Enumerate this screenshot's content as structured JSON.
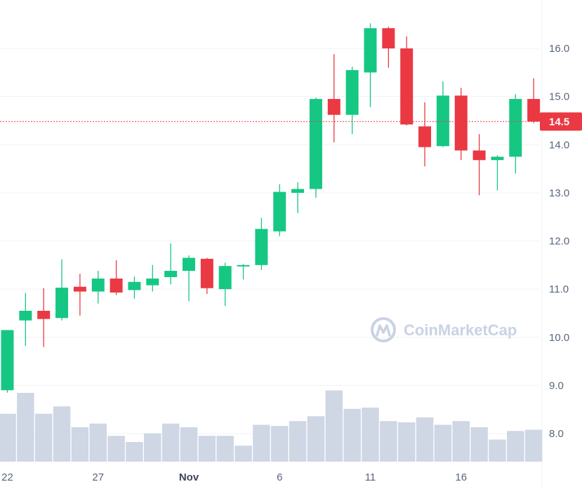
{
  "chart_data": {
    "type": "candlestick",
    "y_axis": {
      "ticks": [
        "16.0",
        "15.0",
        "14.0",
        "13.0",
        "12.0",
        "11.0",
        "10.0",
        "9.0",
        "8.0"
      ],
      "range": [
        7.4,
        16.95
      ],
      "position": "right"
    },
    "x_axis": {
      "ticks": [
        {
          "label": "22",
          "candle_index": 0,
          "bold": false
        },
        {
          "label": "27",
          "candle_index": 5,
          "bold": false
        },
        {
          "label": "Nov",
          "candle_index": 10,
          "bold": true
        },
        {
          "label": "6",
          "candle_index": 15,
          "bold": false
        },
        {
          "label": "11",
          "candle_index": 20,
          "bold": false
        },
        {
          "label": "16",
          "candle_index": 25,
          "bold": false
        }
      ]
    },
    "current_price": "14.5",
    "current_price_value": 14.48,
    "colors": {
      "up": "#16c784",
      "down": "#ea3943",
      "volume": "#cfd6e4",
      "grid": "#eff2f5",
      "price_line": "#ea3943",
      "axis_text": "#58667e"
    },
    "watermark": "CoinMarketCap",
    "grid": true,
    "candles": [
      {
        "o": 8.9,
        "h": 10.15,
        "l": 8.85,
        "c": 10.15
      },
      {
        "o": 10.35,
        "h": 10.92,
        "l": 9.82,
        "c": 10.55
      },
      {
        "o": 10.55,
        "h": 11.02,
        "l": 9.8,
        "c": 10.38
      },
      {
        "o": 10.4,
        "h": 11.62,
        "l": 10.35,
        "c": 11.03
      },
      {
        "o": 11.05,
        "h": 11.32,
        "l": 10.45,
        "c": 10.95
      },
      {
        "o": 10.95,
        "h": 11.38,
        "l": 10.7,
        "c": 11.22
      },
      {
        "o": 11.22,
        "h": 11.6,
        "l": 10.88,
        "c": 10.93
      },
      {
        "o": 10.98,
        "h": 11.26,
        "l": 10.8,
        "c": 11.15
      },
      {
        "o": 11.08,
        "h": 11.5,
        "l": 10.95,
        "c": 11.22
      },
      {
        "o": 11.25,
        "h": 11.95,
        "l": 11.1,
        "c": 11.38
      },
      {
        "o": 11.38,
        "h": 11.7,
        "l": 10.75,
        "c": 11.65
      },
      {
        "o": 11.63,
        "h": 11.65,
        "l": 10.9,
        "c": 11.02
      },
      {
        "o": 11.0,
        "h": 11.55,
        "l": 10.65,
        "c": 11.48
      },
      {
        "o": 11.48,
        "h": 11.52,
        "l": 11.2,
        "c": 11.5
      },
      {
        "o": 11.5,
        "h": 12.48,
        "l": 11.4,
        "c": 12.25
      },
      {
        "o": 12.2,
        "h": 13.18,
        "l": 12.1,
        "c": 13.02
      },
      {
        "o": 13.0,
        "h": 13.22,
        "l": 12.58,
        "c": 13.08
      },
      {
        "o": 13.08,
        "h": 14.98,
        "l": 12.9,
        "c": 14.95
      },
      {
        "o": 14.95,
        "h": 15.88,
        "l": 14.05,
        "c": 14.62
      },
      {
        "o": 14.62,
        "h": 15.62,
        "l": 14.22,
        "c": 15.55
      },
      {
        "o": 15.5,
        "h": 16.52,
        "l": 14.78,
        "c": 16.42
      },
      {
        "o": 16.42,
        "h": 16.45,
        "l": 15.6,
        "c": 16.0
      },
      {
        "o": 16.0,
        "h": 16.25,
        "l": 14.4,
        "c": 14.42
      },
      {
        "o": 14.38,
        "h": 14.88,
        "l": 13.55,
        "c": 13.95
      },
      {
        "o": 13.97,
        "h": 15.32,
        "l": 13.95,
        "c": 15.02
      },
      {
        "o": 15.02,
        "h": 15.18,
        "l": 13.68,
        "c": 13.88
      },
      {
        "o": 13.88,
        "h": 14.22,
        "l": 12.95,
        "c": 13.68
      },
      {
        "o": 13.68,
        "h": 13.78,
        "l": 13.05,
        "c": 13.75
      },
      {
        "o": 13.75,
        "h": 15.05,
        "l": 13.4,
        "c": 14.95
      },
      {
        "o": 14.95,
        "h": 15.38,
        "l": 14.45,
        "c": 14.48
      }
    ],
    "volume": [
      0.39,
      0.56,
      0.39,
      0.45,
      0.28,
      0.31,
      0.21,
      0.16,
      0.23,
      0.31,
      0.28,
      0.21,
      0.21,
      0.13,
      0.3,
      0.29,
      0.33,
      0.37,
      0.58,
      0.43,
      0.44,
      0.33,
      0.32,
      0.36,
      0.3,
      0.33,
      0.28,
      0.18,
      0.25,
      0.26
    ]
  }
}
